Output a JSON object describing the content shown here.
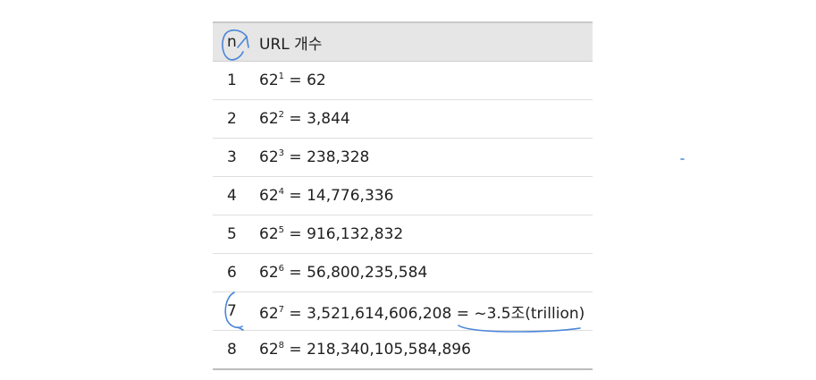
{
  "table": {
    "headers": [
      "n",
      "URL 개수"
    ],
    "rows": [
      {
        "n": "1",
        "base": "62",
        "exp": "1",
        "result": " = 62"
      },
      {
        "n": "2",
        "base": "62",
        "exp": "2",
        "result": " = 3,844"
      },
      {
        "n": "3",
        "base": "62",
        "exp": "3",
        "result": " = 238,328"
      },
      {
        "n": "4",
        "base": "62",
        "exp": "4",
        "result": " = 14,776,336"
      },
      {
        "n": "5",
        "base": "62",
        "exp": "5",
        "result": " = 916,132,832"
      },
      {
        "n": "6",
        "base": "62",
        "exp": "6",
        "result": " = 56,800,235,584"
      },
      {
        "n": "7",
        "base": "62",
        "exp": "7",
        "result": " = 3,521,614,606,208 = ~3.5조(trillion)"
      },
      {
        "n": "8",
        "base": "62",
        "exp": "8",
        "result": " = 218,340,105,584,896"
      }
    ]
  },
  "colors": {
    "header_bg": "#e6e6e6",
    "annotation": "#4a86d8",
    "text": "#1f1f1f"
  }
}
